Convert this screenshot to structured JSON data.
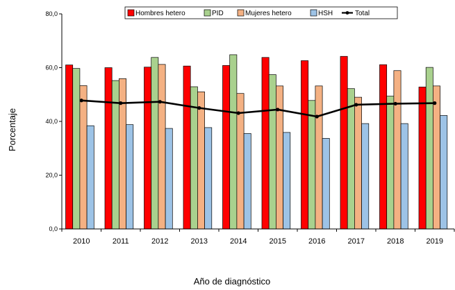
{
  "chart_data": {
    "type": "bar",
    "title": "",
    "xlabel": "Año de diagnóstico",
    "ylabel": "Porcentaje",
    "ylim": [
      0,
      80
    ],
    "yticks": [
      "0,0",
      "20,0",
      "40,0",
      "60,0",
      "80,0"
    ],
    "ytick_values": [
      0,
      20,
      40,
      60,
      80
    ],
    "grid": false,
    "legend_position": "top",
    "categories": [
      "2010",
      "2011",
      "2012",
      "2013",
      "2014",
      "2015",
      "2016",
      "2017",
      "2018",
      "2019"
    ],
    "series": [
      {
        "name": "Hombres hetero",
        "type": "bar",
        "color": "#ff0000",
        "values": [
          61.0,
          60.0,
          60.2,
          60.6,
          60.8,
          63.8,
          62.6,
          64.2,
          61.1,
          52.8
        ]
      },
      {
        "name": "PID",
        "type": "bar",
        "color": "#a9d18e",
        "values": [
          59.7,
          55.2,
          63.8,
          52.9,
          64.8,
          57.4,
          47.8,
          52.2,
          49.4,
          60.1
        ]
      },
      {
        "name": "Mujeres hetero",
        "type": "bar",
        "color": "#f4b183",
        "values": [
          53.3,
          55.9,
          61.2,
          51.0,
          50.4,
          53.2,
          53.2,
          49.0,
          58.9,
          53.2
        ]
      },
      {
        "name": "HSH",
        "type": "bar",
        "color": "#9dc3e6",
        "values": [
          38.4,
          38.8,
          37.4,
          37.7,
          35.5,
          35.9,
          33.7,
          39.2,
          39.2,
          42.2
        ]
      },
      {
        "name": "Total",
        "type": "line",
        "color": "#000000",
        "values": [
          47.8,
          46.8,
          47.3,
          45.0,
          43.1,
          44.4,
          41.8,
          46.2,
          46.6,
          46.8
        ]
      }
    ]
  }
}
